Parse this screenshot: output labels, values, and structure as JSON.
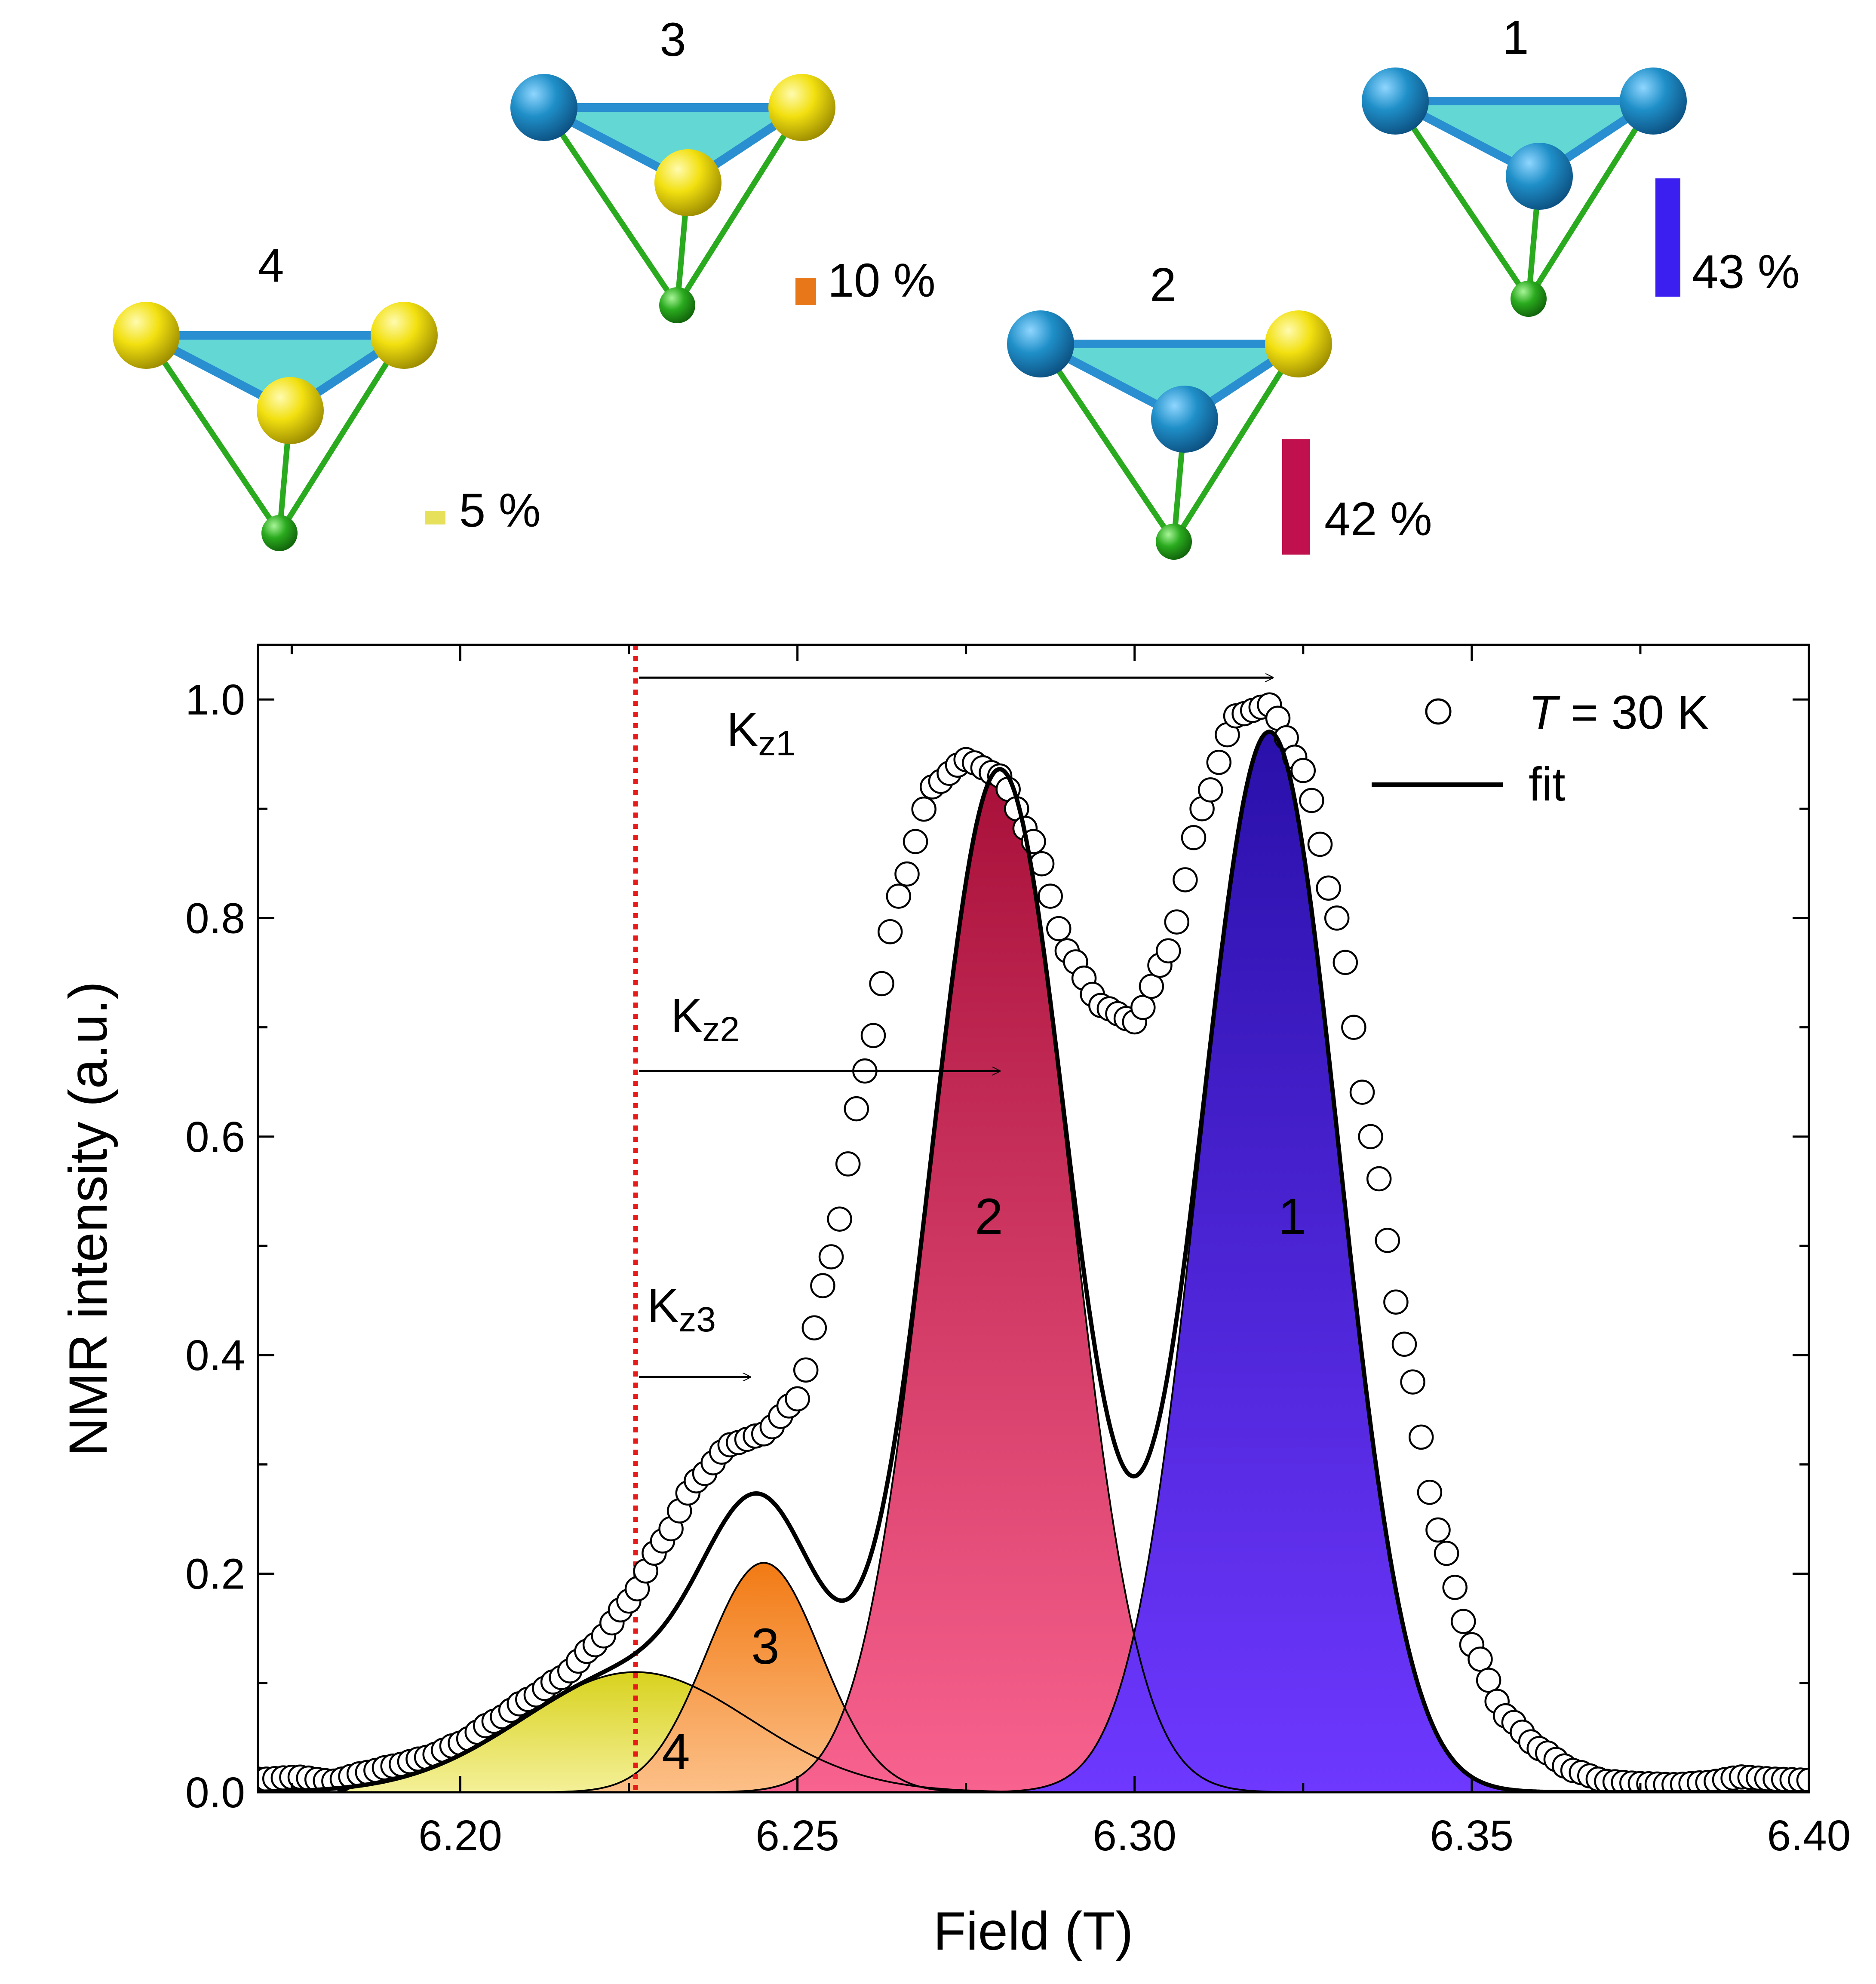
{
  "clusters": [
    {
      "id": "4",
      "label": "4",
      "percent_label": "5 %",
      "percent": 5,
      "bar_color": "#e6e05a",
      "spins": [
        "yellow",
        "yellow",
        "yellow"
      ]
    },
    {
      "id": "3",
      "label": "3",
      "percent_label": "10 %",
      "percent": 10,
      "bar_color": "#e8771a",
      "spins": [
        "blue",
        "yellow",
        "yellow"
      ]
    },
    {
      "id": "2",
      "label": "2",
      "percent_label": "42 %",
      "percent": 42,
      "bar_color": "#c0104e",
      "spins": [
        "blue",
        "yellow",
        "blue"
      ]
    },
    {
      "id": "1",
      "label": "1",
      "percent_label": "43 %",
      "percent": 43,
      "bar_color": "#3a1ff0",
      "spins": [
        "blue",
        "blue",
        "blue"
      ]
    }
  ],
  "colors": {
    "spin_blue": "#1f8fc8",
    "spin_yellow": "#f2e010",
    "ligand_green": "#2aaa1e",
    "face_cyan": "#48d0cc",
    "reference_line": "#e81b1b"
  },
  "chart_data": {
    "type": "line",
    "xlabel": "Field (T)",
    "ylabel": "NMR intensity (a.u.)",
    "xlim": [
      6.17,
      6.4
    ],
    "ylim": [
      0.0,
      1.05
    ],
    "xticks": [
      6.2,
      6.25,
      6.3,
      6.35,
      6.4
    ],
    "xtick_labels": [
      "6.20",
      "6.25",
      "6.30",
      "6.35",
      "6.40"
    ],
    "yticks": [
      0.0,
      0.2,
      0.4,
      0.6,
      0.8,
      1.0
    ],
    "ytick_labels": [
      "0.0",
      "0.2",
      "0.4",
      "0.6",
      "0.8",
      "1.0"
    ],
    "reference_field": 6.226,
    "components": [
      {
        "name": "4",
        "center": 6.226,
        "amplitude": 0.11,
        "sigma": 0.017,
        "area_percent": 5,
        "color_top": "#d8d21e",
        "color_bottom": "#f4f098"
      },
      {
        "name": "3",
        "center": 6.245,
        "amplitude": 0.21,
        "sigma": 0.0085,
        "area_percent": 10,
        "color_top": "#f27a14",
        "color_bottom": "#fcc088"
      },
      {
        "name": "2",
        "center": 6.28,
        "amplitude": 0.935,
        "sigma": 0.0103,
        "area_percent": 42,
        "color_top": "#a8103a",
        "color_bottom": "#f8628e"
      },
      {
        "name": "1",
        "center": 6.32,
        "amplitude": 0.97,
        "sigma": 0.0103,
        "area_percent": 43,
        "color_top": "#2a10aa",
        "color_bottom": "#6e38ff"
      }
    ],
    "data_series": {
      "name": "T = 30 K",
      "marker": "open-circle",
      "x": [
        6.171,
        6.176,
        6.181,
        6.186,
        6.19,
        6.195,
        6.2,
        6.205,
        6.21,
        6.215,
        6.22,
        6.225,
        6.23,
        6.235,
        6.24,
        6.245,
        6.25,
        6.255,
        6.26,
        6.265,
        6.27,
        6.275,
        6.28,
        6.285,
        6.29,
        6.295,
        6.3,
        6.305,
        6.31,
        6.315,
        6.32,
        6.325,
        6.33,
        6.335,
        6.34,
        6.345,
        6.35,
        6.355,
        6.36,
        6.365,
        6.37,
        6.375,
        6.38,
        6.385,
        6.39,
        6.395,
        6.4
      ],
      "y": [
        0.012,
        0.014,
        0.01,
        0.018,
        0.024,
        0.032,
        0.045,
        0.065,
        0.085,
        0.105,
        0.135,
        0.175,
        0.23,
        0.285,
        0.318,
        0.328,
        0.36,
        0.49,
        0.66,
        0.82,
        0.92,
        0.945,
        0.93,
        0.87,
        0.77,
        0.72,
        0.705,
        0.77,
        0.9,
        0.985,
        0.995,
        0.935,
        0.8,
        0.6,
        0.41,
        0.24,
        0.135,
        0.07,
        0.04,
        0.02,
        0.01,
        0.008,
        0.007,
        0.009,
        0.014,
        0.012,
        0.011
      ]
    },
    "fit_series": {
      "name": "fit",
      "style": "solid black line"
    },
    "legend": {
      "position": "top-right",
      "entries": [
        "T = 30 K",
        "fit"
      ]
    },
    "legend_parts": {
      "t_italic": "T",
      "t_rest": " = 30 K",
      "fit": "fit"
    },
    "component_labels": [
      "1",
      "2",
      "3",
      "4"
    ],
    "annotations": [
      {
        "name": "kz1",
        "base": "K",
        "sub": "z1",
        "from": 6.226,
        "to": 6.3205,
        "level": 1.02
      },
      {
        "name": "kz2",
        "base": "K",
        "sub": "z2",
        "from": 6.226,
        "to": 6.28,
        "level": 0.66
      },
      {
        "name": "kz3",
        "base": "K",
        "sub": "z3",
        "from": 6.226,
        "to": 6.243,
        "level": 0.38
      }
    ]
  }
}
